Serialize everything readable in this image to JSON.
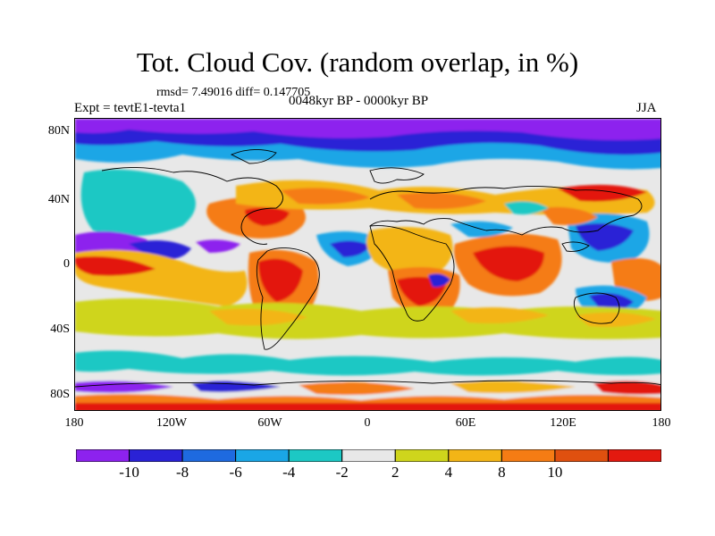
{
  "title": "Tot. Cloud Cov. (random overlap, in %)",
  "stats": "rmsd= 7.49016 diff= 0.147705",
  "experiment": "Expt = tevtE1-tevta1",
  "period": "0048kyr BP - 0000kyr BP",
  "season": "JJA",
  "y_axis_labels": [
    "80N",
    "40N",
    "0",
    "40S",
    "80S"
  ],
  "x_axis_labels": [
    "180",
    "120W",
    "60W",
    "0",
    "60E",
    "120E",
    "180"
  ],
  "colorbar": {
    "colors": [
      "#8d22ee",
      "#2a22d6",
      "#1e6ae0",
      "#1aa6e6",
      "#1cc8c4",
      "#e8e8e8",
      "#cfd51c",
      "#f3b516",
      "#f57c14",
      "#e0500f",
      "#e3190f"
    ],
    "labels": [
      "-10",
      "-8",
      "-6",
      "-4",
      "-2",
      "2",
      "4",
      "8",
      "10"
    ]
  }
}
